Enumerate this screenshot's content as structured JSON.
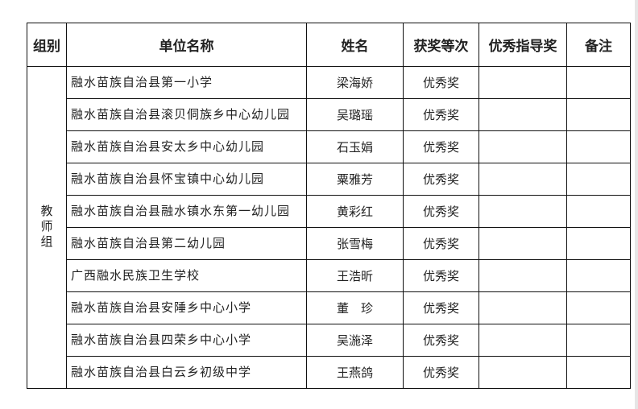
{
  "headers": [
    "组别",
    "单位名称",
    "姓名",
    "获奖等次",
    "优秀指导奖",
    "备注"
  ],
  "group": "教师组",
  "rows": [
    {
      "unit": "融水苗族自治县第一小学",
      "name": "梁海娇",
      "award": "优秀奖",
      "guide": "",
      "note": ""
    },
    {
      "unit": "融水苗族自治县滚贝侗族乡中心幼儿园",
      "name": "吴璐瑶",
      "award": "优秀奖",
      "guide": "",
      "note": ""
    },
    {
      "unit": "融水苗族自治县安太乡中心幼儿园",
      "name": "石玉娟",
      "award": "优秀奖",
      "guide": "",
      "note": ""
    },
    {
      "unit": "融水苗族自治县怀宝镇中心幼儿园",
      "name": "粟雅芳",
      "award": "优秀奖",
      "guide": "",
      "note": ""
    },
    {
      "unit": "融水苗族自治县融水镇水东第一幼儿园",
      "name": "黄彩红",
      "award": "优秀奖",
      "guide": "",
      "note": ""
    },
    {
      "unit": "融水苗族自治县第二幼儿园",
      "name": "张雪梅",
      "award": "优秀奖",
      "guide": "",
      "note": ""
    },
    {
      "unit": "广西融水民族卫生学校",
      "name": "王浩昕",
      "award": "优秀奖",
      "guide": "",
      "note": ""
    },
    {
      "unit": "融水苗族自治县安陲乡中心小学",
      "name": "董　珍",
      "award": "优秀奖",
      "guide": "",
      "note": ""
    },
    {
      "unit": "融水苗族自治县四荣乡中心小学",
      "name": "吴湤泽",
      "award": "优秀奖",
      "guide": "",
      "note": ""
    },
    {
      "unit": "融水苗族自治县白云乡初级中学",
      "name": "王燕鸽",
      "award": "优秀奖",
      "guide": "",
      "note": ""
    }
  ]
}
